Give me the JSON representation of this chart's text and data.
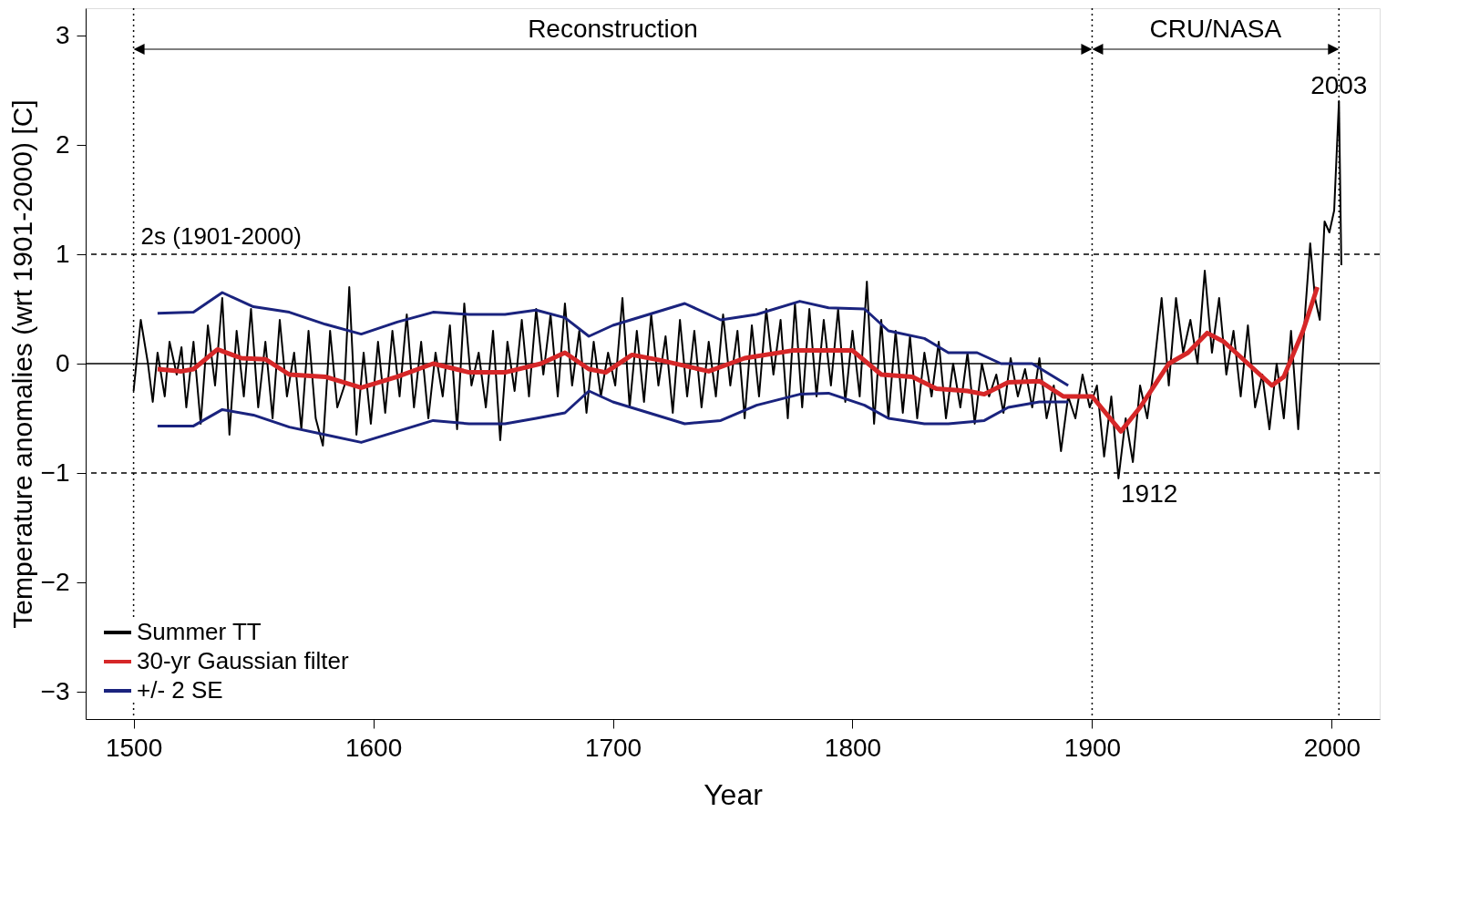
{
  "chart_data": {
    "type": "line",
    "xlabel": "Year",
    "ylabel": "Temperature anomalies (wrt 1901-2000) [C]",
    "xlim": [
      1480,
      2020
    ],
    "ylim": [
      -3.25,
      3.25
    ],
    "xticks": [
      1500,
      1600,
      1700,
      1800,
      1900,
      2000
    ],
    "yticks": [
      -3,
      -2,
      -1,
      0,
      1,
      2,
      3
    ],
    "grid": false,
    "legend": "bottom left",
    "marker": "none",
    "series": [
      {
        "name": "Summer TT",
        "color": "#000000",
        "x": [
          1500,
          1503,
          1506,
          1508,
          1510,
          1513,
          1515,
          1518,
          1520,
          1522,
          1525,
          1528,
          1531,
          1534,
          1537,
          1540,
          1543,
          1546,
          1549,
          1552,
          1555,
          1558,
          1561,
          1564,
          1567,
          1570,
          1573,
          1576,
          1579,
          1582,
          1585,
          1588,
          1590,
          1593,
          1596,
          1599,
          1602,
          1605,
          1608,
          1611,
          1614,
          1617,
          1620,
          1623,
          1626,
          1629,
          1632,
          1635,
          1638,
          1641,
          1644,
          1647,
          1650,
          1653,
          1656,
          1659,
          1662,
          1665,
          1668,
          1671,
          1674,
          1677,
          1680,
          1683,
          1686,
          1689,
          1692,
          1695,
          1698,
          1701,
          1704,
          1707,
          1710,
          1713,
          1716,
          1719,
          1722,
          1725,
          1728,
          1731,
          1734,
          1737,
          1740,
          1743,
          1746,
          1749,
          1752,
          1755,
          1758,
          1761,
          1764,
          1767,
          1770,
          1773,
          1776,
          1779,
          1782,
          1785,
          1788,
          1791,
          1794,
          1797,
          1800,
          1803,
          1806,
          1809,
          1812,
          1815,
          1818,
          1821,
          1824,
          1827,
          1830,
          1833,
          1836,
          1839,
          1842,
          1845,
          1848,
          1851,
          1854,
          1857,
          1860,
          1863,
          1866,
          1869,
          1872,
          1875,
          1878,
          1881,
          1884,
          1887,
          1890,
          1893,
          1896,
          1899,
          1902,
          1905,
          1908,
          1911,
          1914,
          1917,
          1920,
          1923,
          1926,
          1929,
          1932,
          1935,
          1938,
          1941,
          1944,
          1947,
          1950,
          1953,
          1956,
          1959,
          1962,
          1965,
          1968,
          1971,
          1974,
          1977,
          1980,
          1983,
          1986,
          1989,
          1991,
          1993,
          1995,
          1997,
          1999,
          2001,
          2003,
          2004
        ],
        "values": [
          -0.25,
          0.4,
          0.0,
          -0.35,
          0.1,
          -0.3,
          0.2,
          -0.1,
          0.15,
          -0.4,
          0.2,
          -0.55,
          0.35,
          -0.2,
          0.6,
          -0.65,
          0.3,
          -0.3,
          0.5,
          -0.4,
          0.2,
          -0.5,
          0.4,
          -0.3,
          0.1,
          -0.6,
          0.3,
          -0.5,
          -0.75,
          0.3,
          -0.4,
          -0.2,
          0.7,
          -0.65,
          0.1,
          -0.55,
          0.2,
          -0.45,
          0.3,
          -0.3,
          0.45,
          -0.4,
          0.2,
          -0.5,
          0.1,
          -0.3,
          0.35,
          -0.6,
          0.55,
          -0.2,
          0.1,
          -0.4,
          0.3,
          -0.7,
          0.2,
          -0.25,
          0.4,
          -0.3,
          0.5,
          -0.1,
          0.45,
          -0.3,
          0.55,
          -0.2,
          0.3,
          -0.45,
          0.2,
          -0.3,
          0.1,
          -0.2,
          0.6,
          -0.4,
          0.3,
          -0.35,
          0.45,
          -0.2,
          0.25,
          -0.45,
          0.4,
          -0.3,
          0.3,
          -0.4,
          0.2,
          -0.3,
          0.45,
          -0.2,
          0.3,
          -0.5,
          0.35,
          -0.3,
          0.5,
          -0.1,
          0.4,
          -0.5,
          0.55,
          -0.4,
          0.5,
          -0.3,
          0.4,
          -0.2,
          0.5,
          -0.35,
          0.3,
          -0.3,
          0.75,
          -0.55,
          0.4,
          -0.5,
          0.3,
          -0.45,
          0.25,
          -0.5,
          0.1,
          -0.3,
          0.2,
          -0.5,
          0.0,
          -0.4,
          0.1,
          -0.55,
          0.0,
          -0.3,
          -0.1,
          -0.45,
          0.05,
          -0.3,
          -0.05,
          -0.4,
          0.05,
          -0.5,
          -0.2,
          -0.8,
          -0.3,
          -0.5,
          -0.1,
          -0.4,
          -0.2,
          -0.85,
          -0.3,
          -1.05,
          -0.5,
          -0.9,
          -0.2,
          -0.5,
          0.0,
          0.6,
          -0.2,
          0.6,
          0.1,
          0.4,
          0.0,
          0.85,
          0.1,
          0.6,
          -0.1,
          0.3,
          -0.3,
          0.35,
          -0.4,
          -0.1,
          -0.6,
          0.0,
          -0.5,
          0.3,
          -0.6,
          0.5,
          1.1,
          0.6,
          0.4,
          1.3,
          1.2,
          1.4,
          2.4,
          0.9
        ]
      },
      {
        "name": "30-yr Gaussian filter",
        "color": "#d62728",
        "x": [
          1510,
          1520,
          1525,
          1535,
          1545,
          1555,
          1565,
          1580,
          1595,
          1610,
          1625,
          1640,
          1655,
          1670,
          1680,
          1690,
          1697,
          1708,
          1720,
          1740,
          1755,
          1775,
          1790,
          1800,
          1812,
          1825,
          1835,
          1848,
          1855,
          1865,
          1878,
          1888,
          1900,
          1912,
          1920,
          1932,
          1940,
          1948,
          1955,
          1965,
          1975,
          1980,
          1988,
          1994
        ],
        "values": [
          -0.05,
          -0.07,
          -0.05,
          0.13,
          0.05,
          0.04,
          -0.1,
          -0.12,
          -0.22,
          -0.12,
          0.0,
          -0.08,
          -0.08,
          0.0,
          0.1,
          -0.05,
          -0.08,
          0.08,
          0.03,
          -0.07,
          0.05,
          0.12,
          0.12,
          0.12,
          -0.1,
          -0.12,
          -0.23,
          -0.25,
          -0.28,
          -0.17,
          -0.16,
          -0.3,
          -0.3,
          -0.62,
          -0.4,
          0.0,
          0.1,
          0.28,
          0.2,
          0.0,
          -0.2,
          -0.12,
          0.3,
          0.7
        ]
      },
      {
        "name": "+/- 2 SE",
        "color": "#1a237e",
        "x": [
          1510,
          1525,
          1537,
          1550,
          1565,
          1580,
          1595,
          1610,
          1625,
          1640,
          1655,
          1668,
          1680,
          1690,
          1700,
          1715,
          1730,
          1745,
          1760,
          1778,
          1790,
          1805,
          1815,
          1830,
          1840,
          1852,
          1862,
          1875,
          1890
        ],
        "values": [
          0.46,
          0.47,
          0.65,
          0.52,
          0.47,
          0.36,
          0.27,
          0.38,
          0.47,
          0.45,
          0.45,
          0.49,
          0.42,
          0.25,
          0.35,
          0.45,
          0.55,
          0.4,
          0.45,
          0.57,
          0.51,
          0.5,
          0.3,
          0.23,
          0.1,
          0.1,
          0.0,
          0.0,
          -0.2
        ]
      },
      {
        "color": "#1a237e",
        "x": [
          1510,
          1525,
          1537,
          1550,
          1565,
          1580,
          1595,
          1610,
          1625,
          1640,
          1655,
          1668,
          1680,
          1690,
          1700,
          1715,
          1730,
          1745,
          1760,
          1778,
          1790,
          1805,
          1815,
          1830,
          1840,
          1855,
          1865,
          1878,
          1890
        ],
        "values": [
          -0.57,
          -0.57,
          -0.42,
          -0.47,
          -0.58,
          -0.65,
          -0.72,
          -0.62,
          -0.52,
          -0.55,
          -0.55,
          -0.5,
          -0.45,
          -0.25,
          -0.35,
          -0.45,
          -0.55,
          -0.52,
          -0.38,
          -0.28,
          -0.27,
          -0.38,
          -0.5,
          -0.55,
          -0.55,
          -0.52,
          -0.4,
          -0.35,
          -0.35
        ]
      }
    ],
    "ref_lines": [
      {
        "axis": "y",
        "value": 0,
        "line_style": "solid"
      },
      {
        "axis": "y",
        "value": 1,
        "label": "2s  (1901-2000)",
        "line_style": "dashed"
      },
      {
        "axis": "y",
        "value": -1,
        "line_style": "dashed"
      },
      {
        "axis": "x",
        "value": 1500,
        "line_style": "dotted"
      },
      {
        "axis": "x",
        "value": 1900,
        "line_style": "dotted"
      },
      {
        "axis": "x",
        "value": 2003,
        "line_style": "dotted"
      }
    ],
    "annotations": [
      "Reconstruction",
      "CRU/NASA",
      {
        "text": "1912",
        "x": 1912,
        "y": -1.05
      },
      {
        "text": "2003",
        "x": 2003,
        "y": 2.4
      }
    ]
  }
}
